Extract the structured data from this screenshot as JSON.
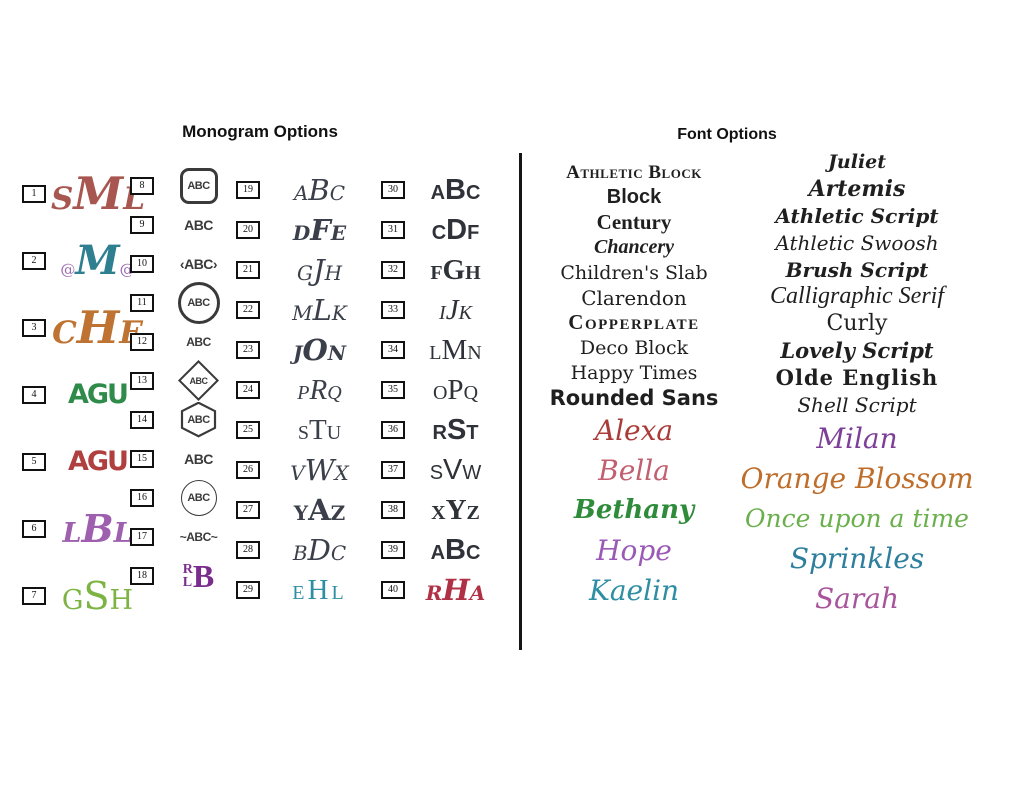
{
  "titles": {
    "monogram": "Monogram Options",
    "font": "Font Options"
  },
  "monograms": {
    "col1": [
      {
        "num": "1",
        "letters": "SML",
        "color": "#a85750"
      },
      {
        "num": "2",
        "letters": "M",
        "color": "#2e7f8f",
        "accent": "#9b6bb0",
        "ornament": "@"
      },
      {
        "num": "3",
        "letters": "CHE",
        "color": "#bf7332"
      },
      {
        "num": "4",
        "letters": "AGU",
        "color": "#2e8b4a"
      },
      {
        "num": "5",
        "letters": "AGU",
        "color": "#b04040"
      },
      {
        "num": "6",
        "letters": "LBL",
        "color": "#9d5fae"
      },
      {
        "num": "7",
        "letters": "GSH",
        "color": "#7cb342"
      }
    ],
    "col2": [
      {
        "num": "8",
        "letters": "ABC",
        "color": "#3a3a3a"
      },
      {
        "num": "9",
        "letters": "ABC",
        "color": "#3a3a3a"
      },
      {
        "num": "10",
        "letters": "‹ABC›",
        "color": "#3a3a3a"
      },
      {
        "num": "11",
        "letters": "ABC",
        "color": "#3a3a3a"
      },
      {
        "num": "12",
        "letters": "ABC",
        "color": "#3a3a3a"
      },
      {
        "num": "13",
        "letters": "ABC",
        "color": "#3a3a3a"
      },
      {
        "num": "14",
        "letters": "ABC",
        "color": "#3a3a3a"
      },
      {
        "num": "15",
        "letters": "ABC",
        "color": "#3a3a3a"
      },
      {
        "num": "16",
        "letters": "ABC",
        "color": "#3a3a3a"
      },
      {
        "num": "17",
        "letters": "~ABC~",
        "color": "#3a3a3a"
      },
      {
        "num": "18",
        "r": "R",
        "l": "L",
        "b": "B",
        "color": "#7b2d8e"
      }
    ],
    "col3": [
      {
        "num": "19",
        "letters": "ABC",
        "color": "#3a3f4a"
      },
      {
        "num": "20",
        "letters": "DFE",
        "color": "#3a3f4a"
      },
      {
        "num": "21",
        "letters": "GJH",
        "color": "#3a3f4a"
      },
      {
        "num": "22",
        "letters": "MLK",
        "color": "#3a3f4a"
      },
      {
        "num": "23",
        "letters": "JON",
        "color": "#3a3f4a"
      },
      {
        "num": "24",
        "letters": "PRQ",
        "color": "#3a3f4a"
      },
      {
        "num": "25",
        "letters": "STU",
        "color": "#3a3f4a"
      },
      {
        "num": "26",
        "letters": "VWX",
        "color": "#3a3f4a"
      },
      {
        "num": "27",
        "letters": "YAZ",
        "color": "#3a3f4a"
      },
      {
        "num": "28",
        "letters": "BDC",
        "color": "#3a3f4a"
      },
      {
        "num": "29",
        "letters": "EHL",
        "color": "#2e8fa3"
      }
    ],
    "col4": [
      {
        "num": "30",
        "letters": "ABC",
        "color": "#2f3238"
      },
      {
        "num": "31",
        "letters": "CDF",
        "color": "#2f3238"
      },
      {
        "num": "32",
        "letters": "FGH",
        "color": "#2f3238"
      },
      {
        "num": "33",
        "letters": "IJK",
        "color": "#2f3238"
      },
      {
        "num": "34",
        "letters": "LMN",
        "color": "#2f3238"
      },
      {
        "num": "35",
        "letters": "OPQ",
        "color": "#2f3238"
      },
      {
        "num": "36",
        "letters": "RST",
        "color": "#2f3238"
      },
      {
        "num": "37",
        "letters": "SVW",
        "color": "#2f3238"
      },
      {
        "num": "38",
        "letters": "XYZ",
        "color": "#2f3238"
      },
      {
        "num": "39",
        "letters": "ABC",
        "color": "#2f3238"
      },
      {
        "num": "40",
        "letters": "RHA",
        "color": "#b03045"
      }
    ]
  },
  "fonts": {
    "col1": [
      {
        "name": "Athletic Block",
        "color": "#1f1f1f"
      },
      {
        "name": "Block",
        "color": "#1f1f1f"
      },
      {
        "name": "Century",
        "color": "#1f1f1f"
      },
      {
        "name": "Chancery",
        "color": "#1f1f1f"
      },
      {
        "name": "Children's Slab",
        "color": "#1f1f1f"
      },
      {
        "name": "Clarendon",
        "color": "#1f1f1f"
      },
      {
        "name": "Copperplate",
        "color": "#1f1f1f"
      },
      {
        "name": "Deco Block",
        "color": "#1f1f1f"
      },
      {
        "name": "Happy Times",
        "color": "#1f1f1f"
      },
      {
        "name": "Rounded Sans",
        "color": "#1f1f1f"
      },
      {
        "name": "Alexa",
        "color": "#a93c38"
      },
      {
        "name": "Bella",
        "color": "#c06070"
      },
      {
        "name": "Bethany",
        "color": "#2e8b3a"
      },
      {
        "name": "Hope",
        "color": "#9b59b6"
      },
      {
        "name": "Kaelin",
        "color": "#2e8fa3"
      }
    ],
    "col2": [
      {
        "name": "Juliet",
        "color": "#1f1f1f"
      },
      {
        "name": "Artemis",
        "color": "#1f1f1f"
      },
      {
        "name": "Athletic Script",
        "color": "#1f1f1f"
      },
      {
        "name": "Athletic Swoosh",
        "color": "#1f1f1f"
      },
      {
        "name": "Brush Script",
        "color": "#1f1f1f"
      },
      {
        "name": "Calligraphic Serif",
        "color": "#1f1f1f"
      },
      {
        "name": "Curly",
        "color": "#1f1f1f"
      },
      {
        "name": "Lovely Script",
        "color": "#1f1f1f"
      },
      {
        "name": "Olde English",
        "color": "#1f1f1f"
      },
      {
        "name": "Shell Script",
        "color": "#1f1f1f"
      },
      {
        "name": "Milan",
        "color": "#7d3f98"
      },
      {
        "name": "Orange Blossom",
        "color": "#bf6d2a"
      },
      {
        "name": "Once upon a time",
        "color": "#6ab04c"
      },
      {
        "name": "Sprinkles",
        "color": "#2e7f9e"
      },
      {
        "name": "Sarah",
        "color": "#a8549b"
      }
    ]
  }
}
